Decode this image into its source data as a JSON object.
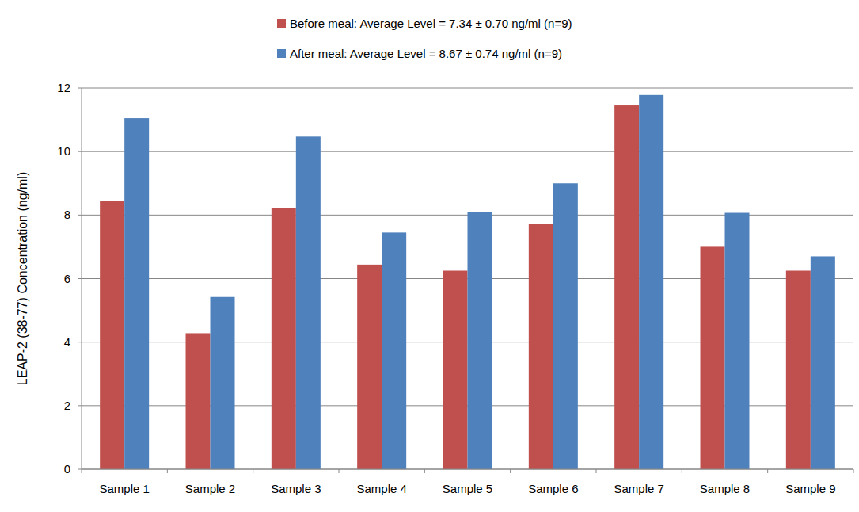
{
  "chart_data": {
    "type": "bar",
    "y_label": "LEAP-2 (38-77) Concentration (ng/ml)",
    "categories": [
      "Sample 1",
      "Sample 2",
      "Sample 3",
      "Sample 4",
      "Sample 5",
      "Sample 6",
      "Sample 7",
      "Sample 8",
      "Sample 9"
    ],
    "series": [
      {
        "name": "Before meal: Average Level = 7.34 ± 0.70 ng/ml (n=9)",
        "color": "#c0504d",
        "values": [
          8.45,
          4.28,
          8.22,
          6.44,
          6.25,
          7.72,
          11.45,
          7.0,
          6.25
        ]
      },
      {
        "name": "After meal: Average Level = 8.67 ± 0.74 ng/ml (n=9)",
        "color": "#4f81bd",
        "values": [
          11.05,
          5.42,
          10.47,
          7.45,
          8.1,
          9.0,
          11.78,
          8.07,
          6.7
        ]
      }
    ],
    "ylim": [
      0,
      12
    ],
    "yticks": [
      0,
      2,
      4,
      6,
      8,
      10,
      12
    ],
    "grid": true,
    "legend": "top"
  }
}
